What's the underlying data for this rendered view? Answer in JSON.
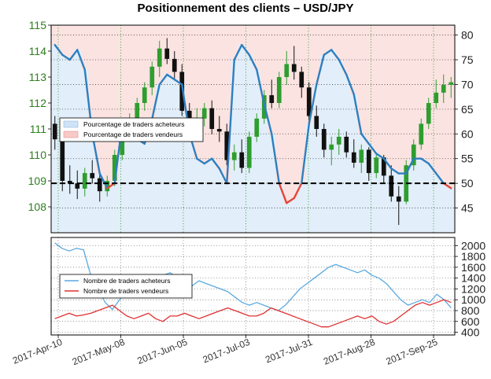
{
  "chart_data": [
    {
      "type": "candlestick+line",
      "title": "Positionnement des clients – USD/JPY",
      "x_ticks": [
        "2017-Apr-10",
        "2017-May-08",
        "2017-Jun-05",
        "2017-Jul-03",
        "2017-Jul-31",
        "2017-Aug-28",
        "2017-Sep-25"
      ],
      "price_axis": {
        "side": "left",
        "ylim": [
          107,
          115
        ],
        "ticks": [
          108,
          109,
          110,
          111,
          112,
          113,
          114,
          115
        ]
      },
      "percent_axis": {
        "side": "right",
        "ylim": [
          40,
          82
        ],
        "ticks": [
          45,
          50,
          55,
          60,
          65,
          70,
          75,
          80
        ]
      },
      "reference_line": {
        "percent": 50,
        "style": "dashed"
      },
      "legend": {
        "placement": "left-middle",
        "entries": [
          "Pourcentage de traders acheteurs",
          "Pourcentage de traders vendeurs"
        ]
      },
      "price_ohlc_approx": [
        [
          111.2,
          111.5,
          110.2,
          110.6
        ],
        [
          110.6,
          110.9,
          108.6,
          109.0
        ],
        [
          109.0,
          109.6,
          108.5,
          108.9
        ],
        [
          108.9,
          109.4,
          108.3,
          108.7
        ],
        [
          108.7,
          109.5,
          108.4,
          109.3
        ],
        [
          109.3,
          109.8,
          108.9,
          109.1
        ],
        [
          109.1,
          109.3,
          108.2,
          108.6
        ],
        [
          108.6,
          109.2,
          108.4,
          109.0
        ],
        [
          109.0,
          110.2,
          108.8,
          110.0
        ],
        [
          110.0,
          111.0,
          109.8,
          110.8
        ],
        [
          110.8,
          111.6,
          110.5,
          111.3
        ],
        [
          111.3,
          112.2,
          111.0,
          112.0
        ],
        [
          112.0,
          112.8,
          111.7,
          112.6
        ],
        [
          112.6,
          113.6,
          112.3,
          113.4
        ],
        [
          113.4,
          114.4,
          113.0,
          114.1
        ],
        [
          114.1,
          114.5,
          113.5,
          113.7
        ],
        [
          113.7,
          114.0,
          112.9,
          113.2
        ],
        [
          113.2,
          113.5,
          111.5,
          111.7
        ],
        [
          111.7,
          112.0,
          110.8,
          111.3
        ],
        [
          111.3,
          111.8,
          110.9,
          111.4
        ],
        [
          111.4,
          112.0,
          111.1,
          111.8
        ],
        [
          111.8,
          112.1,
          110.8,
          111.0
        ],
        [
          111.0,
          111.5,
          110.5,
          110.9
        ],
        [
          110.9,
          111.2,
          109.6,
          109.8
        ],
        [
          109.8,
          110.4,
          109.4,
          110.1
        ],
        [
          110.1,
          110.6,
          109.3,
          109.5
        ],
        [
          109.5,
          110.9,
          109.3,
          110.7
        ],
        [
          110.7,
          111.6,
          110.5,
          111.4
        ],
        [
          111.4,
          112.5,
          111.2,
          112.3
        ],
        [
          112.3,
          112.9,
          111.8,
          112.0
        ],
        [
          112.0,
          113.2,
          111.8,
          113.0
        ],
        [
          113.0,
          114.0,
          112.7,
          113.5
        ],
        [
          113.5,
          114.2,
          112.9,
          113.2
        ],
        [
          113.2,
          113.4,
          112.2,
          112.6
        ],
        [
          112.6,
          112.8,
          111.3,
          111.5
        ],
        [
          111.5,
          111.9,
          110.7,
          111.0
        ],
        [
          111.0,
          111.2,
          109.9,
          110.2
        ],
        [
          110.2,
          110.7,
          109.6,
          110.4
        ],
        [
          110.4,
          111.0,
          110.0,
          110.7
        ],
        [
          110.7,
          110.9,
          109.9,
          110.1
        ],
        [
          110.1,
          110.6,
          109.5,
          109.7
        ],
        [
          109.7,
          110.4,
          109.3,
          110.2
        ],
        [
          110.2,
          110.3,
          109.0,
          109.3
        ],
        [
          109.3,
          110.1,
          109.1,
          109.9
        ],
        [
          109.9,
          110.0,
          108.9,
          109.2
        ],
        [
          109.2,
          109.6,
          108.2,
          108.4
        ],
        [
          108.4,
          108.8,
          107.3,
          108.2
        ],
        [
          108.2,
          109.8,
          108.1,
          109.6
        ],
        [
          109.6,
          110.6,
          109.4,
          110.4
        ],
        [
          110.4,
          111.4,
          110.2,
          111.2
        ],
        [
          111.2,
          112.2,
          111.0,
          112.0
        ],
        [
          112.0,
          112.9,
          111.8,
          112.4
        ],
        [
          112.4,
          113.1,
          112.0,
          112.7
        ],
        [
          112.7,
          113.0,
          112.2,
          112.8
        ]
      ],
      "series": [
        {
          "name": "Pourcentage de traders acheteurs",
          "axis": "right",
          "values": [
            78,
            76,
            75,
            77,
            73,
            60,
            52,
            49,
            50,
            62,
            61,
            59,
            58,
            63,
            70,
            72,
            71,
            70,
            60,
            55,
            54,
            55,
            53,
            50,
            75,
            78,
            76,
            73,
            66,
            60,
            50,
            46,
            47,
            50,
            62,
            70,
            76,
            77,
            75,
            72,
            68,
            60,
            58,
            56,
            55,
            53,
            52,
            52,
            55,
            55,
            54,
            52,
            50,
            49
          ]
        }
      ]
    },
    {
      "type": "line",
      "y_axis": {
        "side": "right",
        "ylim": [
          350,
          2150
        ],
        "ticks": [
          400,
          600,
          800,
          1000,
          1200,
          1400,
          1600,
          1800,
          2000
        ]
      },
      "legend": {
        "placement": "left-middle",
        "entries": [
          "Nombre de traders acheteurs",
          "Nombre de traders vendeurs"
        ]
      },
      "series": [
        {
          "name": "Nombre de traders acheteurs",
          "values": [
            2050,
            1950,
            1900,
            1950,
            1920,
            1450,
            1200,
            950,
            820,
            1000,
            1150,
            1250,
            1300,
            1150,
            1250,
            1450,
            1500,
            1400,
            1350,
            1250,
            1350,
            1300,
            1250,
            1200,
            1150,
            1050,
            950,
            900,
            950,
            900,
            850,
            800,
            900,
            1050,
            1200,
            1300,
            1400,
            1500,
            1600,
            1650,
            1600,
            1550,
            1500,
            1550,
            1450,
            1400,
            1300,
            1150,
            1000,
            900,
            950,
            1000,
            950,
            1100,
            1000,
            850
          ]
        },
        {
          "name": "Nombre de traders vendeurs",
          "values": [
            650,
            700,
            750,
            700,
            720,
            750,
            800,
            850,
            900,
            800,
            700,
            650,
            700,
            750,
            650,
            600,
            700,
            700,
            750,
            700,
            650,
            700,
            750,
            800,
            850,
            800,
            750,
            700,
            700,
            750,
            850,
            800,
            750,
            700,
            650,
            600,
            550,
            500,
            500,
            550,
            600,
            650,
            700,
            650,
            700,
            600,
            550,
            600,
            700,
            800,
            900,
            950,
            900,
            950,
            1000,
            950
          ]
        }
      ]
    }
  ],
  "colors": {
    "buyers": "#2e7fbf",
    "sellers": "#e0463c",
    "buyers_light": "#5aa9e0",
    "sellers_light": "#e03030",
    "bull_candle": "#2e9e2e",
    "bear_candle": "#111111",
    "left_axis": "#2e7d1e"
  }
}
